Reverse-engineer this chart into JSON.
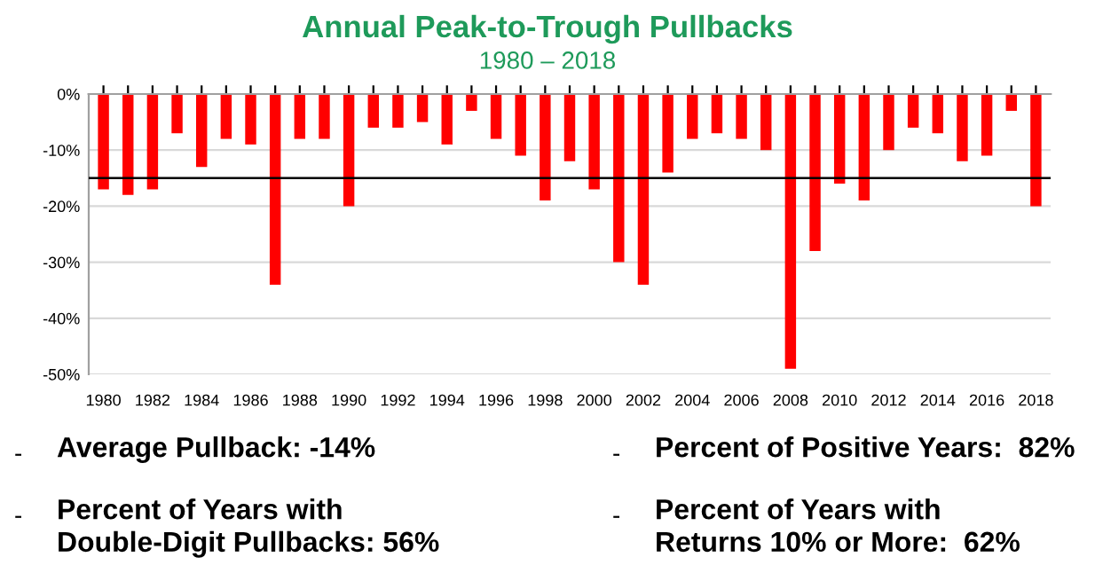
{
  "chart_data": {
    "type": "bar",
    "title": "Annual Peak-to-Trough Pullbacks",
    "subtitle": "1980 – 2018",
    "categories": [
      "1980",
      null,
      "1982",
      null,
      "1984",
      null,
      "1986",
      null,
      "1988",
      null,
      "1990",
      null,
      "1992",
      null,
      "1994",
      null,
      "1996",
      null,
      "1998",
      null,
      "2000",
      null,
      "2002",
      null,
      "2004",
      null,
      "2006",
      null,
      "2008",
      null,
      "2010",
      null,
      "2012",
      null,
      "2014",
      null,
      "2016",
      null,
      "2018"
    ],
    "values": [
      -17,
      -18,
      -17,
      -7,
      -13,
      -8,
      -9,
      -34,
      -8,
      -8,
      -20,
      -6,
      -6,
      -5,
      -9,
      -3,
      -8,
      -11,
      -19,
      -12,
      -17,
      -30,
      -34,
      -14,
      -8,
      -7,
      -8,
      -10,
      -49,
      -28,
      -16,
      -19,
      -10,
      -6,
      -7,
      -12,
      -11,
      -3,
      -20
    ],
    "color": "#ff0000",
    "ylim": [
      -50,
      0
    ],
    "yticks": [
      {
        "value": -50,
        "label": "-50%"
      },
      {
        "value": -40,
        "label": "-40%"
      },
      {
        "value": -30,
        "label": "-30%"
      },
      {
        "value": -20,
        "label": "-20%"
      },
      {
        "value": -10,
        "label": "-10%"
      },
      {
        "value": 0,
        "label": "0%"
      }
    ],
    "grid": "y",
    "ref_lines": [
      {
        "axis": "y",
        "value": -15,
        "color": "#000000"
      }
    ],
    "annotations": [
      "- Average Pullback: -14%",
      "- Percent of Years with\nDouble-Digit Pullbacks: 56%",
      "- Percent of Positive Years:  82%",
      "- Percent of Years with\nReturns 10% or More:  62%"
    ]
  }
}
